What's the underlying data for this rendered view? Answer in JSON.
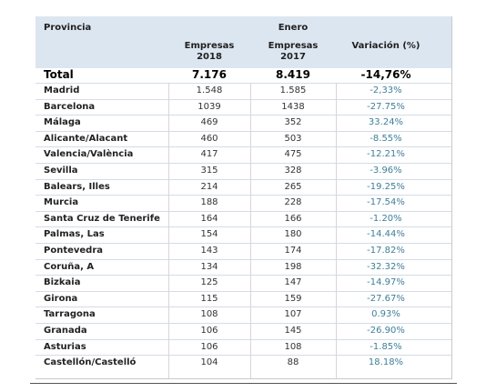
{
  "header": {
    "provincia": "Provincia",
    "enero": "Enero",
    "empresas_2018_line1": "Empresas",
    "empresas_2018_line2": "2018",
    "empresas_2017_line1": "Empresas",
    "empresas_2017_line2": "2017",
    "variacion": "Variación (%)"
  },
  "total": {
    "label": "Total",
    "empresas_2018": "7.176",
    "empresas_2017": "8.419",
    "variacion": "-14,76%"
  },
  "rows": [
    {
      "provincia": "Madrid",
      "empresas_2018": "1.548",
      "empresas_2017": "1.585",
      "variacion": "-2,33%"
    },
    {
      "provincia": "Barcelona",
      "empresas_2018": "1039",
      "empresas_2017": "1438",
      "variacion": "-27.75%"
    },
    {
      "provincia": "Málaga",
      "empresas_2018": "469",
      "empresas_2017": "352",
      "variacion": "33.24%"
    },
    {
      "provincia": "Alicante/Alacant",
      "empresas_2018": "460",
      "empresas_2017": "503",
      "variacion": "-8.55%"
    },
    {
      "provincia": "Valencia/València",
      "empresas_2018": "417",
      "empresas_2017": "475",
      "variacion": "-12.21%"
    },
    {
      "provincia": "Sevilla",
      "empresas_2018": "315",
      "empresas_2017": "328",
      "variacion": "-3.96%"
    },
    {
      "provincia": "Balears, Illes",
      "empresas_2018": "214",
      "empresas_2017": "265",
      "variacion": "-19.25%"
    },
    {
      "provincia": "Murcia",
      "empresas_2018": "188",
      "empresas_2017": "228",
      "variacion": "-17.54%"
    },
    {
      "provincia": "Santa Cruz de Tenerife",
      "empresas_2018": "164",
      "empresas_2017": "166",
      "variacion": "-1.20%"
    },
    {
      "provincia": "Palmas, Las",
      "empresas_2018": "154",
      "empresas_2017": "180",
      "variacion": "-14.44%"
    },
    {
      "provincia": "Pontevedra",
      "empresas_2018": "143",
      "empresas_2017": "174",
      "variacion": "-17.82%"
    },
    {
      "provincia": "Coruña, A",
      "empresas_2018": "134",
      "empresas_2017": "198",
      "variacion": "-32.32%"
    },
    {
      "provincia": "Bizkaia",
      "empresas_2018": "125",
      "empresas_2017": "147",
      "variacion": "-14.97%"
    },
    {
      "provincia": "Girona",
      "empresas_2018": "115",
      "empresas_2017": "159",
      "variacion": "-27.67%"
    },
    {
      "provincia": "Tarragona",
      "empresas_2018": "108",
      "empresas_2017": "107",
      "variacion": "0.93%"
    },
    {
      "provincia": "Granada",
      "empresas_2018": "106",
      "empresas_2017": "145",
      "variacion": "-26.90%"
    },
    {
      "provincia": "Asturias",
      "empresas_2018": "106",
      "empresas_2017": "108",
      "variacion": "-1.85%"
    },
    {
      "provincia": "Castellón/Castelló",
      "empresas_2018": "104",
      "empresas_2017": "88",
      "variacion": "18.18%"
    }
  ],
  "colors": {
    "header_background": "#dce6f1",
    "variation_text": "#3f7f99"
  }
}
